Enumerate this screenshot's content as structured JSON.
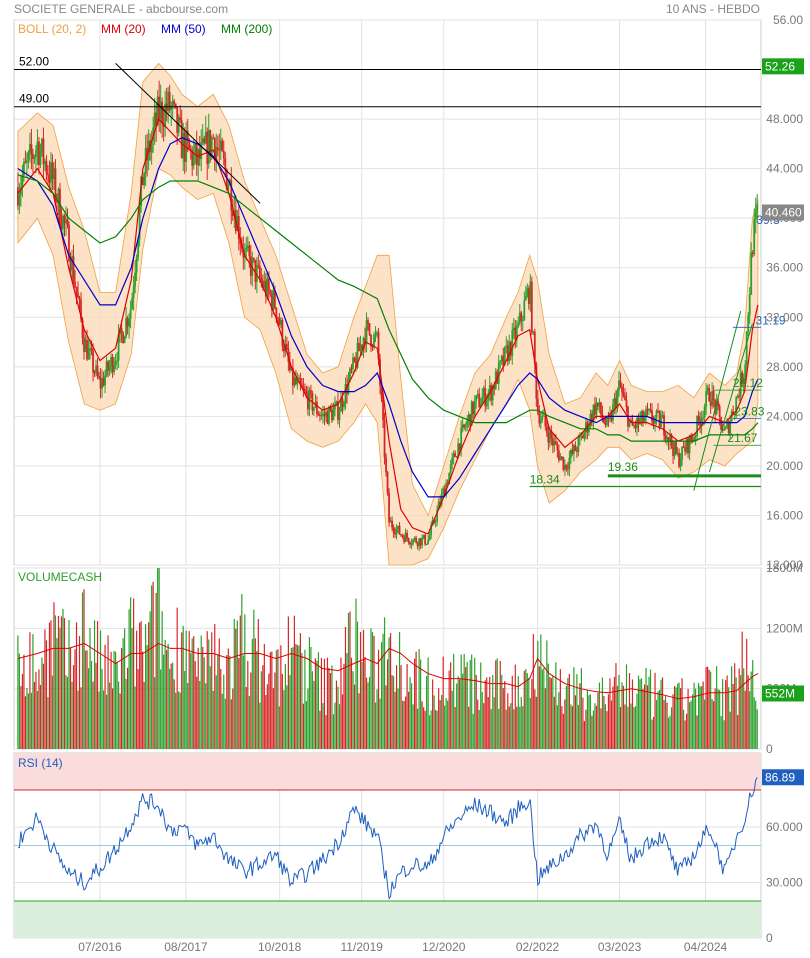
{
  "header": {
    "title": "SOCIETE GENERALE - abcbourse.com",
    "period": "10 ANS - HEBDO"
  },
  "legend": {
    "boll": {
      "label": "BOLL (20, 2)",
      "color": "#f0a040"
    },
    "mm20": {
      "label": "MM (20)",
      "color": "#e00000"
    },
    "mm50": {
      "label": "MM (50)",
      "color": "#0000cc"
    },
    "mm200": {
      "label": "MM (200)",
      "color": "#008000"
    }
  },
  "x_axis": {
    "labels": [
      "07/2016",
      "08/2017",
      "10/2018",
      "11/2019",
      "12/2020",
      "02/2022",
      "03/2023",
      "04/2024"
    ],
    "label_positions_years": [
      2016.5,
      2017.6,
      2018.8,
      2019.85,
      2020.9,
      2022.1,
      2023.15,
      2024.25
    ],
    "start_year": 2015.4,
    "end_year": 2024.96
  },
  "price_panel": {
    "y_ticks": [
      "56.00",
      "52.000",
      "48.000",
      "44.000",
      "40.000",
      "36.000",
      "32.000",
      "28.000",
      "24.000",
      "20.000",
      "16.000",
      "12.000"
    ],
    "y_min": 12,
    "y_max": 56,
    "last_value_label": "40.460",
    "last_value": 40.46,
    "resistance_tag": "52.26",
    "resistance_value": 52.26,
    "hlines": [
      {
        "label": "52.00",
        "value": 52.0
      },
      {
        "label": "49.00",
        "value": 49.0
      }
    ],
    "annotations": [
      {
        "text": "39.3",
        "value": 39.3
      },
      {
        "text": "31.19",
        "value": 31.19
      },
      {
        "text": "26.12",
        "value": 26.12
      },
      {
        "text": "23.83",
        "value": 23.83
      },
      {
        "text": "21.67",
        "value": 21.67
      },
      {
        "text": "19.36",
        "value": 19.36
      },
      {
        "text": "18.34",
        "value": 18.34
      }
    ]
  },
  "volume_panel": {
    "title": "VOLUMECASH",
    "y_ticks": [
      "1800M",
      "1200M",
      "600M",
      "0"
    ],
    "y_max": 1800,
    "last_value_label": "552M",
    "last_value": 552
  },
  "rsi_panel": {
    "title": "RSI (14)",
    "y_ticks": [
      "60.000",
      "30.000",
      "0"
    ],
    "overbought": 80,
    "oversold": 20,
    "last_value_label": "86.89",
    "last_value": 86.89
  },
  "colors": {
    "up": "#2ca02c",
    "down": "#d62728",
    "boll_fill": "#fbd9b5",
    "rsi_line": "#1f5fbf",
    "tag_green": "#1aa31a",
    "tag_blue": "#1f5fbf",
    "grid": "#e2e2e2"
  },
  "chart_data": [
    {
      "type": "line",
      "title": "SOCIETE GENERALE - abcbourse.com",
      "subtitle": "10 ANS - HEBDO",
      "xlabel": "",
      "ylabel": "",
      "grid": true,
      "ylim": [
        12,
        56
      ],
      "x": [
        2015.45,
        2015.7,
        2015.9,
        2016.1,
        2016.3,
        2016.5,
        2016.7,
        2016.9,
        2017.05,
        2017.25,
        2017.4,
        2017.55,
        2017.75,
        2017.95,
        2018.15,
        2018.35,
        2018.55,
        2018.75,
        2018.95,
        2019.15,
        2019.35,
        2019.55,
        2019.75,
        2019.9,
        2020.05,
        2020.2,
        2020.35,
        2020.5,
        2020.7,
        2020.9,
        2021.1,
        2021.3,
        2021.5,
        2021.7,
        2021.85,
        2022.0,
        2022.1,
        2022.25,
        2022.45,
        2022.65,
        2022.85,
        2023.0,
        2023.15,
        2023.3,
        2023.5,
        2023.7,
        2023.9,
        2024.1,
        2024.3,
        2024.5,
        2024.65,
        2024.75,
        2024.85,
        2024.92
      ],
      "series": [
        {
          "name": "SOCIETE GENERALE",
          "values": [
            42.5,
            46.0,
            43.0,
            38.0,
            30.0,
            26.5,
            29.0,
            33.0,
            43.5,
            48.5,
            49.0,
            46.0,
            44.5,
            46.5,
            43.0,
            37.0,
            35.0,
            33.0,
            27.0,
            25.5,
            24.0,
            24.5,
            28.0,
            31.0,
            30.0,
            15.5,
            14.5,
            14.0,
            14.0,
            18.0,
            22.0,
            25.0,
            26.0,
            29.0,
            31.0,
            34.5,
            24.5,
            22.5,
            20.0,
            22.0,
            25.0,
            23.0,
            26.5,
            23.0,
            24.0,
            23.5,
            20.5,
            22.5,
            26.0,
            22.5,
            25.5,
            28.0,
            38.0,
            40.46
          ]
        },
        {
          "name": "MM (20)",
          "values": [
            42.0,
            44.0,
            42.0,
            36.0,
            31.0,
            28.5,
            29.5,
            35.0,
            44.0,
            48.0,
            47.0,
            46.0,
            45.0,
            45.5,
            42.0,
            37.0,
            35.0,
            32.0,
            28.0,
            25.5,
            24.5,
            25.0,
            27.5,
            30.0,
            29.5,
            22.0,
            16.5,
            15.0,
            14.5,
            17.5,
            21.0,
            24.0,
            26.0,
            28.5,
            30.5,
            31.0,
            27.0,
            23.0,
            21.5,
            22.5,
            24.0,
            24.0,
            25.0,
            23.5,
            23.5,
            23.0,
            22.0,
            22.5,
            24.0,
            23.5,
            24.5,
            26.0,
            31.0,
            33.0
          ]
        },
        {
          "name": "MM (50)",
          "values": [
            44.0,
            43.0,
            41.0,
            37.0,
            35.0,
            33.0,
            33.0,
            36.0,
            40.0,
            44.0,
            46.0,
            46.5,
            46.0,
            45.0,
            43.0,
            40.0,
            37.0,
            34.0,
            30.5,
            28.0,
            26.5,
            26.0,
            26.0,
            26.5,
            27.5,
            25.0,
            22.0,
            19.5,
            17.5,
            17.5,
            19.0,
            21.0,
            23.0,
            25.0,
            26.5,
            27.5,
            27.0,
            25.5,
            24.5,
            24.0,
            23.5,
            24.0,
            24.0,
            24.0,
            24.0,
            23.5,
            23.5,
            23.5,
            23.5,
            23.5,
            23.5,
            24.0,
            26.0,
            27.0
          ]
        },
        {
          "name": "MM (200)",
          "values": [
            43.5,
            43.0,
            42.0,
            40.0,
            39.0,
            38.0,
            38.5,
            40.0,
            41.5,
            42.5,
            43.0,
            43.0,
            43.0,
            42.5,
            42.0,
            41.0,
            40.0,
            39.0,
            38.0,
            37.0,
            36.0,
            35.0,
            34.5,
            34.0,
            33.5,
            31.0,
            29.0,
            27.0,
            25.5,
            24.5,
            24.0,
            23.5,
            23.5,
            23.5,
            24.0,
            24.5,
            24.5,
            24.0,
            23.5,
            23.0,
            23.0,
            22.5,
            22.5,
            22.0,
            22.0,
            22.0,
            22.0,
            22.0,
            22.5,
            22.5,
            22.5,
            22.5,
            23.0,
            23.5
          ]
        },
        {
          "name": "BOLL (20, 2)",
          "upper": [
            47.0,
            48.5,
            47.5,
            42.5,
            39.0,
            34.0,
            34.0,
            42.0,
            51.0,
            52.5,
            51.5,
            50.0,
            49.0,
            50.0,
            47.5,
            43.0,
            40.0,
            37.0,
            33.0,
            29.0,
            27.5,
            28.0,
            32.0,
            34.5,
            37.0,
            37.0,
            27.0,
            18.5,
            16.0,
            20.0,
            24.0,
            27.5,
            29.0,
            32.0,
            34.0,
            37.0,
            35.0,
            29.0,
            25.0,
            25.5,
            27.5,
            26.5,
            28.5,
            26.5,
            26.0,
            26.0,
            26.5,
            25.5,
            27.5,
            26.5,
            27.5,
            31.0,
            40.0,
            41.5
          ],
          "lower": [
            38.0,
            40.0,
            37.0,
            30.0,
            25.0,
            24.5,
            25.0,
            29.0,
            37.5,
            44.0,
            43.5,
            42.5,
            41.5,
            42.0,
            38.0,
            32.0,
            31.0,
            27.5,
            23.0,
            22.0,
            21.5,
            22.0,
            23.5,
            25.0,
            23.5,
            12.0,
            12.0,
            12.0,
            12.5,
            15.0,
            18.0,
            20.5,
            23.0,
            25.0,
            27.0,
            24.5,
            20.0,
            17.0,
            18.0,
            19.5,
            20.5,
            21.5,
            21.5,
            20.5,
            21.0,
            20.5,
            19.0,
            19.5,
            20.5,
            20.0,
            21.0,
            21.5,
            22.0,
            25.0
          ]
        }
      ]
    },
    {
      "type": "bar",
      "title": "VOLUMECASH",
      "xlabel": "",
      "ylabel": "",
      "grid": true,
      "ylim": [
        0,
        1800
      ],
      "x": [
        2015.45,
        2015.7,
        2015.9,
        2016.1,
        2016.3,
        2016.5,
        2016.7,
        2016.9,
        2017.05,
        2017.25,
        2017.4,
        2017.55,
        2017.75,
        2017.95,
        2018.15,
        2018.35,
        2018.55,
        2018.75,
        2018.95,
        2019.15,
        2019.35,
        2019.55,
        2019.75,
        2019.9,
        2020.05,
        2020.2,
        2020.35,
        2020.5,
        2020.7,
        2020.9,
        2021.1,
        2021.3,
        2021.5,
        2021.7,
        2021.85,
        2022.0,
        2022.1,
        2022.25,
        2022.45,
        2022.65,
        2022.85,
        2023.0,
        2023.15,
        2023.3,
        2023.5,
        2023.7,
        2023.9,
        2024.1,
        2024.3,
        2024.5,
        2024.65,
        2024.75,
        2024.85,
        2024.92
      ],
      "series": [
        {
          "name": "VOLUMECASH",
          "values": [
            1100,
            850,
            1250,
            950,
            1350,
            900,
            800,
            1200,
            1000,
            1500,
            900,
            1300,
            800,
            1000,
            900,
            1250,
            950,
            800,
            1100,
            900,
            700,
            750,
            1250,
            950,
            850,
            1350,
            950,
            800,
            700,
            750,
            800,
            700,
            650,
            700,
            650,
            850,
            1200,
            800,
            650,
            600,
            550,
            600,
            650,
            700,
            600,
            550,
            500,
            600,
            650,
            600,
            700,
            1100,
            950,
            552
          ]
        },
        {
          "name": "MM (20)",
          "values": [
            900,
            950,
            1000,
            1000,
            1050,
            950,
            850,
            950,
            950,
            1050,
            1000,
            1000,
            950,
            950,
            900,
            950,
            950,
            900,
            950,
            900,
            800,
            780,
            850,
            900,
            850,
            1000,
            950,
            850,
            750,
            700,
            700,
            680,
            650,
            650,
            620,
            700,
            900,
            750,
            650,
            600,
            570,
            560,
            580,
            600,
            570,
            540,
            500,
            520,
            560,
            560,
            580,
            650,
            720,
            750
          ]
        }
      ]
    },
    {
      "type": "line",
      "title": "RSI (14)",
      "xlabel": "",
      "ylabel": "",
      "grid": true,
      "ylim": [
        0,
        100
      ],
      "x": [
        2015.45,
        2015.7,
        2015.9,
        2016.1,
        2016.3,
        2016.5,
        2016.7,
        2016.9,
        2017.05,
        2017.25,
        2017.4,
        2017.55,
        2017.75,
        2017.95,
        2018.15,
        2018.35,
        2018.55,
        2018.75,
        2018.95,
        2019.15,
        2019.35,
        2019.55,
        2019.75,
        2019.9,
        2020.05,
        2020.2,
        2020.35,
        2020.5,
        2020.7,
        2020.9,
        2021.1,
        2021.3,
        2021.5,
        2021.7,
        2021.85,
        2022.0,
        2022.1,
        2022.25,
        2022.45,
        2022.65,
        2022.85,
        2023.0,
        2023.15,
        2023.3,
        2023.5,
        2023.7,
        2023.9,
        2024.1,
        2024.3,
        2024.5,
        2024.65,
        2024.75,
        2024.85,
        2024.92
      ],
      "series": [
        {
          "name": "RSI (14)",
          "values": [
            52,
            65,
            48,
            35,
            30,
            38,
            48,
            62,
            75,
            72,
            58,
            60,
            50,
            55,
            42,
            36,
            40,
            45,
            30,
            35,
            42,
            52,
            70,
            62,
            55,
            25,
            35,
            40,
            38,
            55,
            65,
            72,
            68,
            62,
            70,
            75,
            32,
            38,
            45,
            55,
            62,
            45,
            62,
            42,
            52,
            55,
            35,
            45,
            60,
            35,
            55,
            65,
            80,
            86.89
          ]
        }
      ]
    }
  ]
}
